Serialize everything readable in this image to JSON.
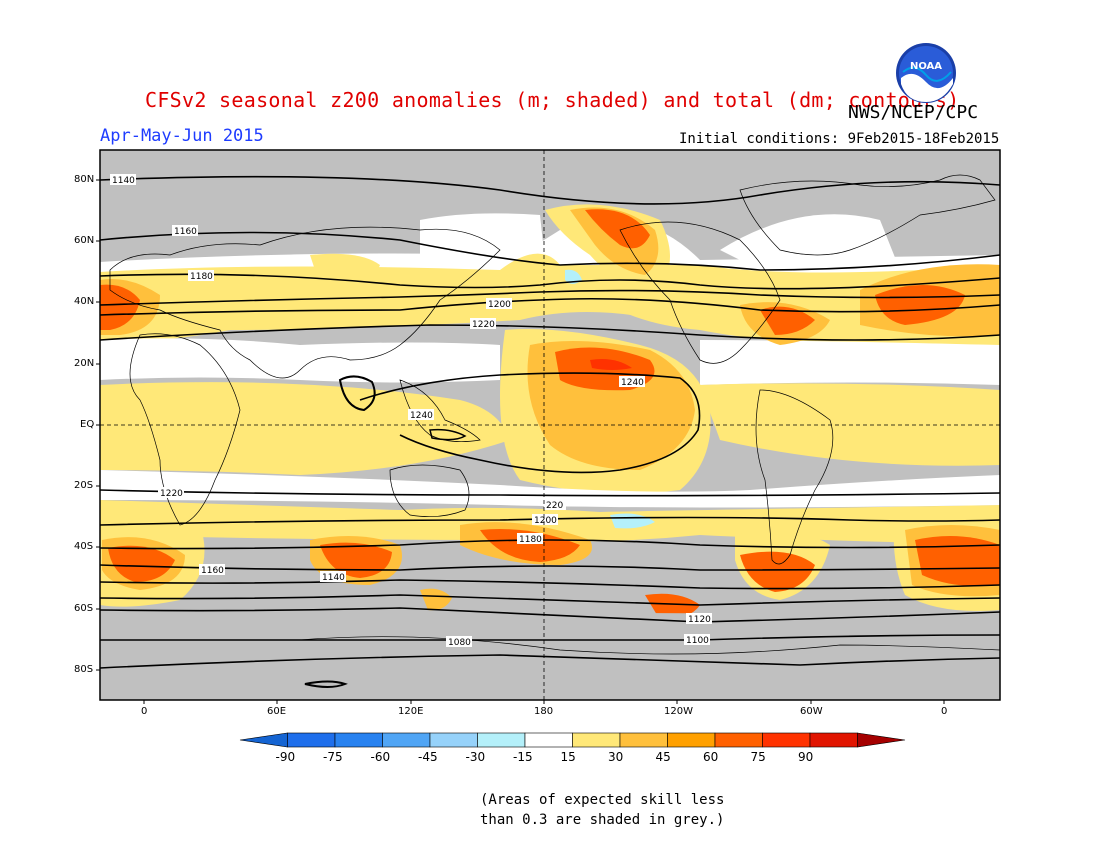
{
  "title": "CFSv2 seasonal z200 anomalies (m; shaded) and total (dm; contours)",
  "agency": "NWS/NCEP/CPC",
  "season": "Apr-May-Jun 2015",
  "initial_conditions": "Initial conditions: 9Feb2015-18Feb2015",
  "logo_text": "NOAA",
  "lat_labels": [
    "80N",
    "60N",
    "40N",
    "20N",
    "EQ",
    "20S",
    "40S",
    "60S",
    "80S"
  ],
  "lon_labels": [
    "0",
    "60E",
    "120E",
    "180",
    "120W",
    "60W",
    "0"
  ],
  "colorbar": {
    "values": [
      "-90",
      "-75",
      "-60",
      "-45",
      "-30",
      "-15",
      "15",
      "30",
      "45",
      "60",
      "75",
      "90"
    ],
    "colors": [
      "#1464d2",
      "#1e6eeb",
      "#2882f0",
      "#50a5f5",
      "#96d2fa",
      "#b4f0fa",
      "#ffffff",
      "#ffe878",
      "#ffc03c",
      "#ffa000",
      "#ff6000",
      "#ff3200",
      "#e11400",
      "#a50000"
    ]
  },
  "contour_labels": [
    "1140",
    "1160",
    "1180",
    "1200",
    "1220",
    "1240",
    "1220",
    "1200",
    "1180",
    "1160",
    "1140",
    "1120",
    "1100",
    "1080",
    "1240",
    "220"
  ],
  "note_line1": "(Areas of expected skill less",
  "note_line2": "than 0.3 are shaded in grey.)",
  "colors": {
    "title": "#e00000",
    "season": "#1e3cff",
    "low_skill": "#c0c0c0",
    "light_anom": "#ffe878",
    "medium_anom": "#ffc03c",
    "strong_anom": "#ff6000"
  }
}
